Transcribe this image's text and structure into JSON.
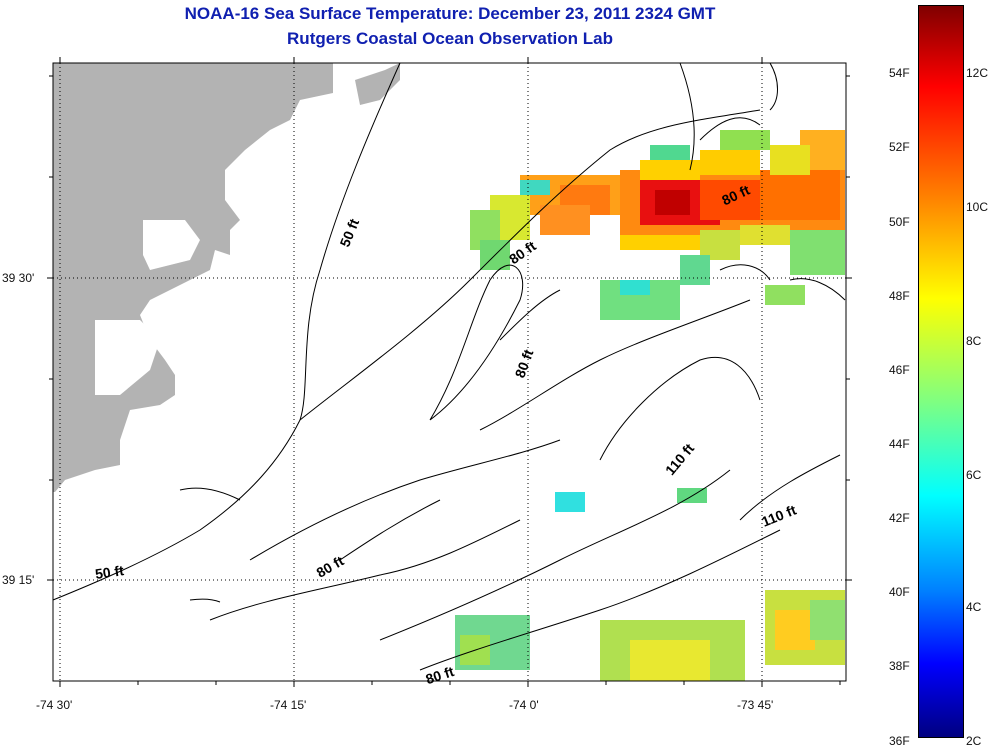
{
  "title_line1": "NOAA-16 Sea Surface Temperature:  December 23, 2011 2324 GMT",
  "title_line2": "Rutgers Coastal Ocean Observation Lab",
  "x_ticks": [
    "-74 30'",
    "-74 15'",
    "-74 0'",
    "-73 45'"
  ],
  "y_ticks": [
    "39 30'",
    "39 15'"
  ],
  "contour_labels": [
    "50 ft",
    "50 ft",
    "80 ft",
    "80 ft",
    "80 ft",
    "80 ft",
    "80 ft",
    "110 ft",
    "110 ft"
  ],
  "colorbar": {
    "fahrenheit": [
      "54F",
      "52F",
      "50F",
      "48F",
      "46F",
      "44F",
      "42F",
      "40F",
      "38F",
      "36F"
    ],
    "celsius": [
      "12C",
      "10C",
      "8C",
      "6C",
      "4C",
      "2C"
    ]
  },
  "colors": {
    "title": "#1020b0",
    "land": "#b3b3b3"
  }
}
